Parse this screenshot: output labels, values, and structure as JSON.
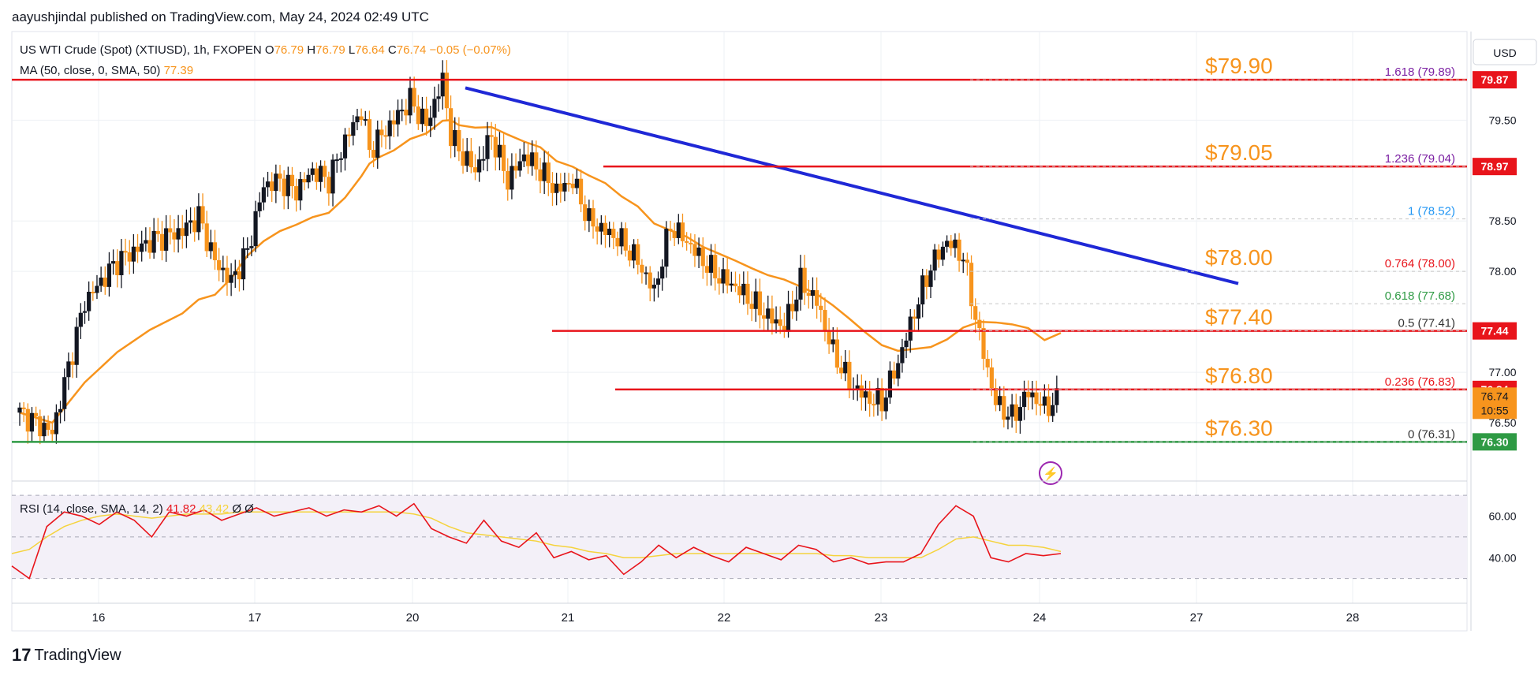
{
  "header": {
    "published": "aayushjindal published on TradingView.com, May 24, 2024 02:49 UTC"
  },
  "legend": {
    "symbol": "US WTI Crude (Spot) (XTIUSD), 1h, FXOPEN",
    "o_label": "O",
    "o_value": "76.79",
    "h_label": "H",
    "h_value": "76.79",
    "l_label": "L",
    "l_value": "76.64",
    "c_label": "C",
    "c_value": "76.74",
    "change": "−0.05 (−0.07%)",
    "ma_label": "MA (50, close, 0, SMA, 50)",
    "ma_value": "77.39",
    "rsi_label": "RSI (14, close, SMA, 14, 2)",
    "rsi_value": "41.82",
    "rsi_sma_value": "43.42",
    "rsi_extra": "Ø Ø"
  },
  "currency": "USD",
  "colors": {
    "up": "#131722",
    "down": "#f7941d",
    "ma": "#f7941d",
    "level": "#e8141b",
    "support": "#2e9a44",
    "trend": "#1f28d6",
    "rsi": "#e8141b",
    "rsi_ma": "#f5d33d",
    "label": "#f7941d"
  },
  "logo": {
    "text": "TradingView",
    "mark_icon": "tradingview-logo-icon"
  },
  "chart_data": {
    "type": "candlestick",
    "title": "US WTI Crude (Spot) (XTIUSD), 1h, FXOPEN",
    "ylim": [
      76.0,
      80.3
    ],
    "y_ticks": [
      "79.50",
      "78.50",
      "78.00",
      "77.00",
      "76.50"
    ],
    "x_ticks": [
      "16",
      "17",
      "20",
      "21",
      "22",
      "23",
      "24",
      "27",
      "28"
    ],
    "price_close_path": [
      [
        0,
        76.6
      ],
      [
        2,
        76.4
      ],
      [
        4,
        77.7
      ],
      [
        6,
        78.1
      ],
      [
        8,
        78.3
      ],
      [
        10,
        78.4
      ],
      [
        11,
        78.55
      ],
      [
        12,
        78.1
      ],
      [
        13,
        77.9
      ],
      [
        14,
        78.2
      ],
      [
        15,
        78.85
      ],
      [
        16,
        78.9
      ],
      [
        17,
        78.8
      ],
      [
        18,
        79.0
      ],
      [
        19,
        78.9
      ],
      [
        20,
        79.3
      ],
      [
        21,
        79.6
      ],
      [
        21.5,
        79.2
      ],
      [
        22,
        79.3
      ],
      [
        23,
        79.5
      ],
      [
        24,
        79.7
      ],
      [
        25,
        79.45
      ],
      [
        26,
        79.9
      ],
      [
        26.5,
        79.35
      ],
      [
        27,
        79.2
      ],
      [
        28,
        79.0
      ],
      [
        29,
        79.35
      ],
      [
        30,
        78.9
      ],
      [
        31,
        79.15
      ],
      [
        32,
        79.0
      ],
      [
        33,
        78.8
      ],
      [
        34,
        78.9
      ],
      [
        35,
        78.5
      ],
      [
        36,
        78.4
      ],
      [
        37,
        78.3
      ],
      [
        38,
        78.1
      ],
      [
        39,
        77.8
      ],
      [
        40,
        78.45
      ],
      [
        41,
        78.3
      ],
      [
        42,
        78.1
      ],
      [
        43,
        77.95
      ],
      [
        44,
        77.85
      ],
      [
        45,
        77.7
      ],
      [
        46,
        77.55
      ],
      [
        47,
        77.45
      ],
      [
        48,
        77.9
      ],
      [
        49,
        77.7
      ],
      [
        50,
        77.2
      ],
      [
        51,
        76.9
      ],
      [
        52,
        76.75
      ],
      [
        53,
        76.7
      ],
      [
        54,
        77.1
      ],
      [
        55,
        77.6
      ],
      [
        56,
        78.05
      ],
      [
        57,
        78.3
      ],
      [
        58,
        78.15
      ],
      [
        59,
        77.35
      ],
      [
        60,
        76.7
      ],
      [
        61,
        76.55
      ],
      [
        62,
        76.8
      ],
      [
        63,
        76.65
      ],
      [
        64,
        76.74
      ]
    ],
    "ma50": {
      "name": "MA (50, close, 0, SMA, 50)",
      "last": 77.39
    },
    "trendline": {
      "from": [
        79.8
      ],
      "to": [
        77.9
      ],
      "color": "blue"
    },
    "levels": [
      {
        "label": "$79.90",
        "price": 79.9,
        "fib": "1.618 (79.89)",
        "badge": "79.87"
      },
      {
        "label": "$79.05",
        "price": 79.04,
        "fib": "1.236 (79.04)",
        "badge": "78.97"
      },
      {
        "label": "",
        "price": 78.52,
        "fib": "1 (78.52)",
        "badge": ""
      },
      {
        "label": "$78.00",
        "price": 78.0,
        "fib": "0.764 (78.00)",
        "badge": ""
      },
      {
        "label": "",
        "price": 77.68,
        "fib": "0.618 (77.68)",
        "badge": ""
      },
      {
        "label": "$77.40",
        "price": 77.41,
        "fib": "0.5 (77.41)",
        "badge": "77.44"
      },
      {
        "label": "$76.80",
        "price": 76.83,
        "fib": "0.236 (76.83)",
        "badge": "76.84"
      },
      {
        "label": "$76.30",
        "price": 76.31,
        "fib": "0 (76.31)",
        "badge": "76.30"
      }
    ],
    "last_price_badge": {
      "price": "76.74",
      "countdown": "10:55"
    },
    "rsi": {
      "y_ticks": [
        "60.00",
        "40.00"
      ],
      "rsi_line": [
        36,
        30,
        55,
        62,
        60,
        56,
        62,
        58,
        50,
        62,
        60,
        63,
        58,
        61,
        64,
        60,
        62,
        64,
        60,
        63,
        62,
        65,
        60,
        66,
        54,
        50,
        47,
        58,
        48,
        45,
        52,
        40,
        43,
        39,
        41,
        32,
        38,
        46,
        40,
        45,
        41,
        38,
        45,
        42,
        39,
        46,
        44,
        38,
        40,
        37,
        38,
        38,
        42,
        56,
        65,
        60,
        40,
        38,
        42,
        41,
        42
      ],
      "rsi_ma_line": [
        42,
        44,
        50,
        55,
        58,
        60,
        61,
        60,
        59,
        60,
        61,
        61,
        61,
        62,
        62,
        62,
        62,
        62,
        62,
        62,
        62,
        62,
        62,
        61,
        59,
        55,
        52,
        51,
        50,
        49,
        48,
        46,
        45,
        43,
        42,
        40,
        40,
        41,
        42,
        42,
        42,
        42,
        42,
        42,
        42,
        42,
        42,
        41,
        41,
        40,
        40,
        40,
        40,
        44,
        49,
        50,
        48,
        46,
        46,
        45,
        43
      ]
    }
  }
}
